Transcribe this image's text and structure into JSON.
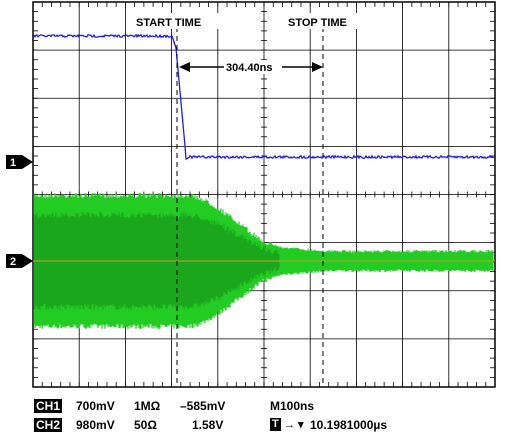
{
  "markers": {
    "start_label": "START TIME",
    "stop_label": "STOP TIME",
    "delta_label": "304.40ns"
  },
  "channel_markers": {
    "ch1": "1",
    "ch2": "2"
  },
  "colors": {
    "ch1_trace": "#1a1aff",
    "ch2_trace": "#22cc22",
    "ch2_dark": "#178a17",
    "ch2_ref_line": "#c8a030",
    "grid": "#000000"
  },
  "readout": {
    "ch1": {
      "tag": "CH1",
      "volts_div": "700mV",
      "impedance": "1MΩ",
      "offset": "–585mV"
    },
    "ch2": {
      "tag": "CH2",
      "volts_div": "980mV",
      "impedance": "50Ω",
      "offset": "1.58V"
    },
    "timebase": "M100ns",
    "trigger_tag": "T",
    "trigger_symbol": "→ ▾",
    "trigger_time": "10.1981000µs"
  }
}
